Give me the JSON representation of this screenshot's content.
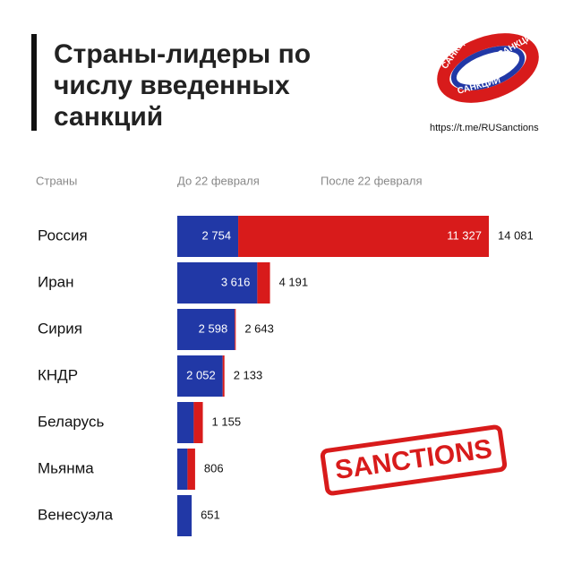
{
  "chart_data": {
    "type": "stacked-hbar",
    "title": "Страны-лидеры по числу введенных санкций",
    "category_header": "Страны",
    "categories": [
      "Россия",
      "Иран",
      "Сирия",
      "КНДР",
      "Беларусь",
      "Мьянма",
      "Венесуэла"
    ],
    "series": [
      {
        "name": "До 22 февраля",
        "color": "#2138a6",
        "values": [
          2754,
          3616,
          2598,
          2052,
          744,
          461,
          651
        ],
        "value_labels": [
          "2 754",
          "3 616",
          "2 598",
          "2 052",
          null,
          null,
          null
        ]
      },
      {
        "name": "После 22 февраля",
        "color": "#d81b1b",
        "values": [
          11327,
          575,
          45,
          81,
          411,
          345,
          0
        ],
        "value_labels": [
          "11 327",
          null,
          null,
          null,
          null,
          null,
          null
        ]
      }
    ],
    "totals": {
      "values": [
        14081,
        4191,
        2643,
        2133,
        1155,
        806,
        651
      ],
      "value_labels": [
        "14 081",
        "4 191",
        "2 643",
        "2 133",
        "1 155",
        "806",
        "651"
      ]
    },
    "xlim": [
      0,
      14081
    ]
  },
  "decorations": {
    "link": "https://t.me/RUSanctions",
    "logo_texts": [
      "САНКЦИИ",
      "САНКЦИИ",
      "САНКЦИИ"
    ],
    "stamp": "SANCTIONS"
  }
}
